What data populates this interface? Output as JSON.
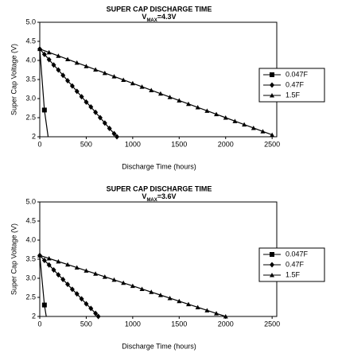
{
  "chart_data": [
    {
      "type": "line",
      "title": "SUPER CAP DISCHARGE TIME",
      "subtitle": [
        "V",
        "MAX",
        "=4.3V"
      ],
      "x_label": "Discharge Time (hours)",
      "y_label": "Super Cap Voltage (V)",
      "xlim": [
        0,
        2550
      ],
      "ylim": [
        2,
        5
      ],
      "xticks": [
        0,
        500,
        1000,
        1500,
        2000,
        2500
      ],
      "yticks": [
        2,
        2.5,
        {
          "value": 3,
          "label": "3.0"
        },
        3.5,
        {
          "value": 4,
          "label": "4.0"
        },
        4.5,
        {
          "value": 5,
          "label": "5.0"
        }
      ],
      "legend": "right",
      "series": [
        {
          "name": "0.047F",
          "color": "#000000",
          "marker": "square",
          "x": [
            0,
            50,
            90
          ],
          "values": [
            4.3,
            2.7,
            2.0
          ]
        },
        {
          "name": "0.47F",
          "color": "#000000",
          "marker": "diamond",
          "x": [
            0,
            50,
            100,
            150,
            200,
            250,
            300,
            350,
            400,
            450,
            500,
            550,
            600,
            650,
            700,
            750,
            800,
            830
          ],
          "values": [
            4.3,
            4.16,
            4.02,
            3.88,
            3.75,
            3.61,
            3.47,
            3.33,
            3.19,
            3.05,
            2.91,
            2.78,
            2.64,
            2.5,
            2.36,
            2.22,
            2.08,
            2.0
          ]
        },
        {
          "name": "1.5F",
          "color": "#000000",
          "marker": "triangle",
          "x": [
            0,
            100,
            200,
            300,
            400,
            500,
            600,
            700,
            800,
            900,
            1000,
            1100,
            1200,
            1300,
            1400,
            1500,
            1600,
            1700,
            1800,
            1900,
            2000,
            2100,
            2200,
            2300,
            2400,
            2500
          ],
          "values": [
            4.3,
            4.21,
            4.12,
            4.03,
            3.94,
            3.85,
            3.76,
            3.67,
            3.58,
            3.49,
            3.4,
            3.31,
            3.22,
            3.13,
            3.04,
            2.95,
            2.86,
            2.77,
            2.68,
            2.59,
            2.5,
            2.41,
            2.32,
            2.23,
            2.14,
            2.05
          ]
        }
      ]
    },
    {
      "type": "line",
      "title": "SUPER CAP DISCHARGE TIME",
      "subtitle": [
        "V",
        "MAX",
        "=3.6V"
      ],
      "x_label": "Discharge Time (hours)",
      "y_label": "Super Cap Voltage (V)",
      "xlim": [
        0,
        2550
      ],
      "ylim": [
        2,
        5
      ],
      "xticks": [
        0,
        500,
        1000,
        1500,
        2000,
        2500
      ],
      "yticks": [
        2,
        2.5,
        {
          "value": 3,
          "label": "3.0"
        },
        3.5,
        {
          "value": 4,
          "label": "4.0"
        },
        4.5,
        {
          "value": 5,
          "label": "5.0"
        }
      ],
      "legend": "right",
      "series": [
        {
          "name": "0.047F",
          "color": "#000000",
          "marker": "square",
          "x": [
            0,
            50,
            70
          ],
          "values": [
            3.6,
            2.3,
            2.0
          ]
        },
        {
          "name": "0.47F",
          "color": "#000000",
          "marker": "diamond",
          "x": [
            0,
            50,
            100,
            150,
            200,
            250,
            300,
            350,
            400,
            450,
            500,
            550,
            600,
            630
          ],
          "values": [
            3.6,
            3.47,
            3.35,
            3.22,
            3.09,
            2.97,
            2.84,
            2.71,
            2.59,
            2.46,
            2.33,
            2.21,
            2.08,
            2.0
          ]
        },
        {
          "name": "1.5F",
          "color": "#000000",
          "marker": "triangle",
          "x": [
            0,
            100,
            200,
            300,
            400,
            500,
            600,
            700,
            800,
            900,
            1000,
            1100,
            1200,
            1300,
            1400,
            1500,
            1600,
            1700,
            1800,
            1900,
            2000
          ],
          "values": [
            3.6,
            3.52,
            3.44,
            3.36,
            3.28,
            3.2,
            3.12,
            3.04,
            2.96,
            2.88,
            2.8,
            2.72,
            2.64,
            2.56,
            2.48,
            2.4,
            2.32,
            2.24,
            2.16,
            2.08,
            2.0
          ]
        }
      ]
    }
  ]
}
